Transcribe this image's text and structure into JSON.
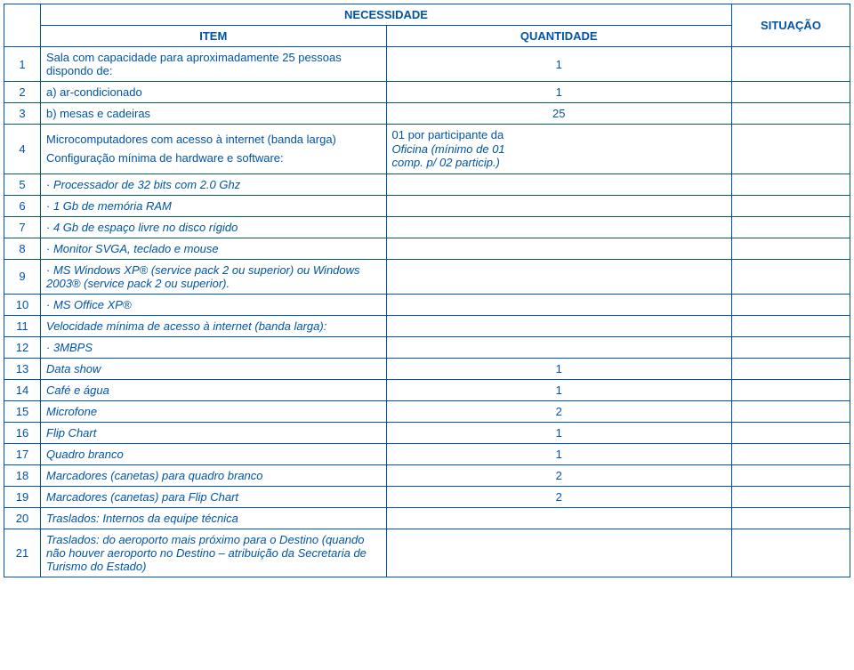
{
  "headers": {
    "necessidade": "NECESSIDADE",
    "item": "ITEM",
    "quantidade": "QUANTIDADE",
    "situacao": "SITUAÇÃO"
  },
  "rows": [
    {
      "n": "1",
      "item": "Sala com capacidade para aproximadamente 25 pessoas dispondo de:",
      "qty": "1",
      "italic": false,
      "indent": 0
    },
    {
      "n": "2",
      "item": "a) ar-condicionado",
      "qty": "1",
      "italic": false,
      "indent": 1
    },
    {
      "n": "3",
      "item": "b) mesas e cadeiras",
      "qty": "25",
      "italic": false,
      "indent": 1
    },
    {
      "n": "4",
      "item_l1": "Microcomputadores com acesso à internet (banda larga)",
      "item_l2": "Configuração mínima de hardware e software:",
      "qty_l1": "01 por  participante da",
      "qty_l2": "Oficina (mínimo de 01",
      "qty_l3": "comp. p/ 02 particip.)",
      "italic": false,
      "indent": 0,
      "multi": true
    },
    {
      "n": "5",
      "item": "·        Processador de 32 bits com 2.0 Ghz",
      "qty": "",
      "italic": true,
      "indent": 0
    },
    {
      "n": "6",
      "item": "·        1 Gb de memória RAM",
      "qty": "",
      "italic": true,
      "indent": 0
    },
    {
      "n": "7",
      "item": "·        4 Gb de espaço livre no disco rígido",
      "qty": "",
      "italic": true,
      "indent": 0
    },
    {
      "n": "8",
      "item": "·        Monitor SVGA, teclado e mouse",
      "qty": "",
      "italic": true,
      "indent": 0
    },
    {
      "n": "9",
      "item": "·        MS Windows XP® (service pack 2 ou superior) ou Windows 2003® (service pack 2 ou superior).",
      "qty": "",
      "italic": true,
      "indent": 0
    },
    {
      "n": "10",
      "item": "·        MS Office XP®",
      "qty": "",
      "italic": true,
      "indent": 0
    },
    {
      "n": "11",
      "item": "Velocidade mínima de acesso à internet (banda larga):",
      "qty": "",
      "italic": true,
      "indent": 0
    },
    {
      "n": "12",
      "item": "·       3MBPS",
      "qty": "",
      "italic": true,
      "indent": 0
    },
    {
      "n": "13",
      "item": "Data show",
      "qty": "1",
      "italic": true,
      "indent": 0
    },
    {
      "n": "14",
      "item": "Café e água",
      "qty": "1",
      "italic": true,
      "indent": 0
    },
    {
      "n": "15",
      "item": "Microfone",
      "qty": "2",
      "italic": true,
      "indent": 0
    },
    {
      "n": "16",
      "item": "Flip Chart",
      "qty": "1",
      "italic": true,
      "indent": 0
    },
    {
      "n": "17",
      "item": "Quadro branco",
      "qty": "1",
      "italic": true,
      "indent": 0
    },
    {
      "n": "18",
      "item": "Marcadores (canetas) para quadro branco",
      "qty": "2",
      "italic": true,
      "indent": 0
    },
    {
      "n": "19",
      "item": "Marcadores (canetas) para Flip Chart",
      "qty": "2",
      "italic": true,
      "indent": 1
    },
    {
      "n": "20",
      "item": "Traslados: Internos da equipe técnica",
      "qty": "",
      "italic": true,
      "indent": 2
    },
    {
      "n": "21",
      "item": "Traslados: do aeroporto mais próximo para o Destino (quando não houver aeroporto no Destino – atribuição da Secretaria de Turismo do Estado)",
      "qty": "",
      "italic": true,
      "indent": 0
    }
  ]
}
